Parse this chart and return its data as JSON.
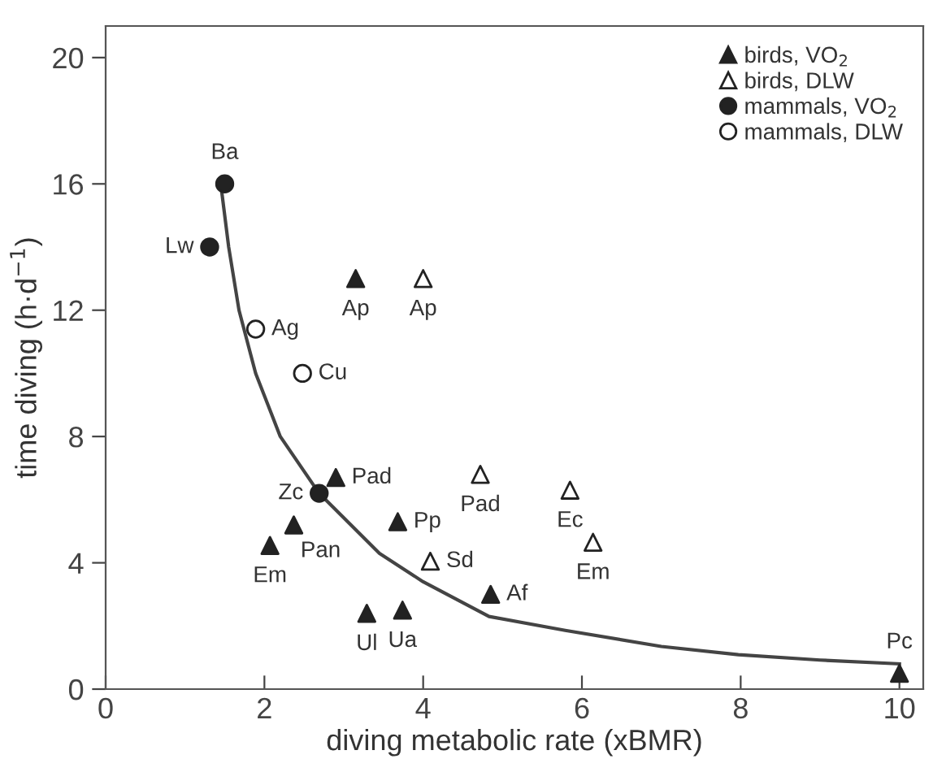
{
  "chart_data": {
    "type": "scatter",
    "xlabel": "diving metabolic rate (xBMR)",
    "ylabel": "time diving (h·d$^{−1}$)",
    "xlim": [
      0,
      10.3
    ],
    "ylim": [
      0,
      21
    ],
    "xticks": [
      0,
      2,
      4,
      6,
      8,
      10
    ],
    "yticks": [
      0,
      4,
      8,
      12,
      16,
      20
    ],
    "grid": false,
    "legend": "top right",
    "series": [
      {
        "name": "birds, VO$_{2}$",
        "color": "#222222",
        "marker": "triangle",
        "x": [
          3.15,
          2.9,
          2.37,
          2.07,
          3.68,
          3.29,
          3.74,
          4.85,
          10
        ],
        "values": [
          13,
          6.7,
          5.2,
          4.55,
          5.3,
          2.4,
          2.5,
          3.0,
          0.5
        ]
      },
      {
        "name": "birds, DLW",
        "color": "#222222",
        "marker": "triangle",
        "x": [
          4.0,
          4.72,
          5.85,
          6.14,
          4.09
        ],
        "values": [
          13,
          6.8,
          6.3,
          4.65,
          4.05
        ]
      },
      {
        "name": "mammals, VO$_{2}$",
        "color": "#222222",
        "marker": "circle",
        "x": [
          1.5,
          1.31,
          2.69
        ],
        "values": [
          16,
          14,
          6.2
        ]
      },
      {
        "name": "mammals, DLW",
        "color": "#222222",
        "marker": "circle",
        "x": [
          1.89,
          2.48
        ],
        "values": [
          11.4,
          10.0
        ]
      },
      {
        "type": "line",
        "color": "#444444",
        "marker": "none",
        "x": [
          1.45,
          1.55,
          1.68,
          1.89,
          2.2,
          2.69,
          3.45,
          4.0,
          4.83,
          5.79,
          7.0,
          7.97,
          9.0,
          10
        ],
        "values": [
          16,
          14,
          12,
          10,
          8,
          6.2,
          4.3,
          3.4,
          2.3,
          1.86,
          1.35,
          1.09,
          0.92,
          0.8
        ]
      }
    ],
    "annotations": [
      {
        "text": "Ap",
        "x": 3.15,
        "y": 13
      },
      {
        "text": "Pad",
        "x": 2.9,
        "y": 6.7
      },
      {
        "text": "Pan",
        "x": 2.37,
        "y": 5.2
      },
      {
        "text": "Em",
        "x": 2.07,
        "y": 4.55
      },
      {
        "text": "Pp",
        "x": 3.68,
        "y": 5.3
      },
      {
        "text": "Ul",
        "x": 3.29,
        "y": 2.4
      },
      {
        "text": "Ua",
        "x": 3.74,
        "y": 2.5
      },
      {
        "text": "Af",
        "x": 4.85,
        "y": 3.0
      },
      {
        "text": "Pc",
        "x": 10,
        "y": 0.5
      },
      {
        "text": "Ap",
        "x": 4.0,
        "y": 13
      },
      {
        "text": "Pad",
        "x": 4.72,
        "y": 6.8
      },
      {
        "text": "Ec",
        "x": 5.85,
        "y": 6.3
      },
      {
        "text": "Em",
        "x": 6.14,
        "y": 4.65
      },
      {
        "text": "Sd",
        "x": 4.09,
        "y": 4.05
      },
      {
        "text": "Ba",
        "x": 1.5,
        "y": 16
      },
      {
        "text": "Lw",
        "x": 1.31,
        "y": 14
      },
      {
        "text": "Zc",
        "x": 2.69,
        "y": 6.2
      },
      {
        "text": "Ag",
        "x": 1.89,
        "y": 11.4
      },
      {
        "text": "Cu",
        "x": 2.48,
        "y": 10.0
      }
    ]
  }
}
